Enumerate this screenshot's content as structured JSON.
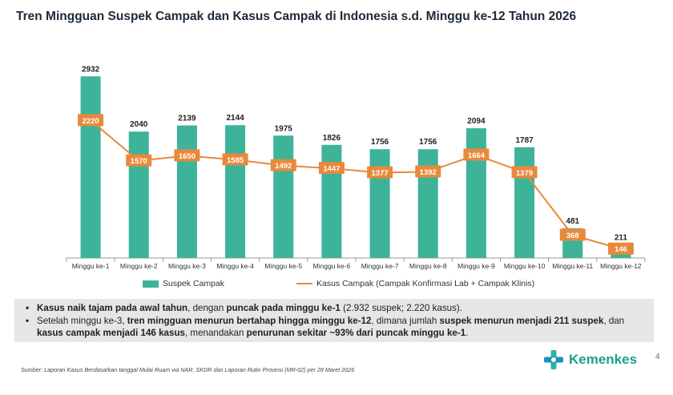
{
  "title": "Tren Mingguan Suspek Campak dan Kasus Campak di Indonesia s.d. Minggu ke-12 Tahun 2026",
  "chart_data": {
    "type": "bar",
    "categories": [
      "Minggu ke-1",
      "Minggu ke-2",
      "Minggu ke-3",
      "Minggu ke-4",
      "Minggu ke-5",
      "Minggu ke-6",
      "Minggu ke-7",
      "Minggu ke-8",
      "Minggu ke-9",
      "Minggu ke-10",
      "Minggu ke-11",
      "Minggu ke-12"
    ],
    "series": [
      {
        "name": "Suspek Campak",
        "type": "bar",
        "color": "#3db39a",
        "values": [
          2932,
          2040,
          2139,
          2144,
          1975,
          1826,
          1756,
          1756,
          2094,
          1787,
          481,
          211
        ]
      },
      {
        "name": "Kasus Campak (Campak Konfirmasi Lab + Campak Klinis)",
        "type": "line",
        "color": "#e8893a",
        "values": [
          2220,
          1570,
          1650,
          1585,
          1492,
          1447,
          1377,
          1392,
          1664,
          1379,
          368,
          146
        ]
      }
    ],
    "grid": false,
    "legend": "bottom"
  },
  "summary": {
    "bullet1": {
      "b1": "Kasus naik tajam pada awal tahun",
      "t1": ", dengan ",
      "b2": "puncak pada minggu ke-1",
      "t2": " (2.932 suspek; 2.220 kasus)."
    },
    "bullet2": {
      "t1": "Setelah minggu ke-3, ",
      "b1": "tren mingguan menurun bertahap hingga minggu ke-12",
      "t2": ", dimana jumlah ",
      "b2": "suspek menurun menjadi 211 suspek",
      "t3": ", dan ",
      "b3": "kasus campak menjadi 146 kasus",
      "t4": ", menandakan ",
      "b4": "penurunan sekitar ~93% dari puncak minggu ke-1",
      "t5": "."
    }
  },
  "source": "Sumber: Laporan Kasus Berdasarkan tanggal Mulai Ruam via  NAR, SKDR dan  Laporan Rutin Provinsi (MR-02) per 28 Maret  2026",
  "logo": {
    "text": "Kemenkes",
    "icon": "kemenkes-logo-icon",
    "color": "#1aa08a"
  },
  "page_number": "4"
}
